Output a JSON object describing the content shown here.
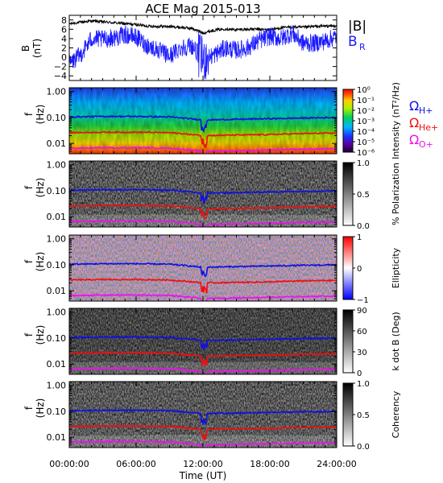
{
  "title": "ACE Mag 2015-013",
  "x_axis": {
    "label": "Time (UT)",
    "ticks": [
      "00:00:00",
      "06:00:00",
      "12:00:00",
      "18:00:00",
      "24:00:00"
    ]
  },
  "colors": {
    "B_total": "#000000",
    "B_R": "#1a1aff",
    "omega_H": "#1010e0",
    "omega_He": "#ee1010",
    "omega_O": "#ee10ee"
  },
  "legend_B": {
    "total": "|B|",
    "radial": "B",
    "radial_sub": "R"
  },
  "legend_gyro": [
    {
      "name": "Ω",
      "sub": "H+",
      "color": "#1010e0"
    },
    {
      "name": "Ω",
      "sub": "He+",
      "color": "#ee1010"
    },
    {
      "name": "Ω",
      "sub": "O+",
      "color": "#ee10ee"
    }
  ],
  "panel_B": {
    "ylabel_top": "B",
    "ylabel_bottom": "(nT)",
    "yticks": [
      "8",
      "6",
      "4",
      "2",
      "0",
      "−2",
      "−4"
    ]
  },
  "freq_panel": {
    "ylabel_top": "f",
    "ylabel_bottom": "(Hz)",
    "yticks": [
      "1.00",
      "0.10",
      "0.01"
    ]
  },
  "panels": [
    {
      "id": "intensity",
      "cb_label": "Intensity (nT²/Hz)",
      "cb_ticks": [
        "10⁰",
        "10⁻¹",
        "10⁻²",
        "10⁻³",
        "10⁻⁴",
        "10⁻⁵",
        "10⁻⁶"
      ]
    },
    {
      "id": "polarization",
      "cb_label": "% Polarization",
      "cb_ticks": [
        "1.0",
        "0.5",
        "0.0"
      ]
    },
    {
      "id": "ellipticity",
      "cb_label": "Ellipticity",
      "cb_ticks": [
        "1",
        "0",
        "−1"
      ]
    },
    {
      "id": "kdotb",
      "cb_label": "k dot B (Deg)",
      "cb_ticks": [
        "90",
        "60",
        "30",
        "0"
      ]
    },
    {
      "id": "coherence",
      "cb_label": "Coherency",
      "cb_ticks": [
        "1.0",
        "0.5",
        "0.0"
      ]
    }
  ],
  "chart_data": [
    {
      "type": "line",
      "title": "ACE Mag 2015-013",
      "xlabel": "Time (UT)",
      "ylabel": "B (nT)",
      "xlim": [
        0,
        24
      ],
      "ylim": [
        -5,
        9
      ],
      "x": [
        0,
        1,
        2,
        3,
        4,
        5,
        6,
        7,
        8,
        9,
        10,
        11,
        12,
        13,
        14,
        15,
        16,
        17,
        18,
        19,
        20,
        21,
        22,
        23,
        24
      ],
      "series": [
        {
          "name": "|B|",
          "values": [
            7.2,
            7.5,
            7.8,
            7.6,
            7.4,
            7.2,
            7.0,
            6.7,
            6.6,
            6.6,
            6.4,
            6.2,
            5.2,
            5.8,
            6.1,
            5.9,
            6.0,
            6.0,
            5.9,
            6.3,
            6.5,
            6.4,
            6.6,
            6.7,
            6.7
          ]
        },
        {
          "name": "B_R",
          "values": [
            -1.5,
            0.5,
            4.0,
            3.8,
            4.2,
            4.8,
            4.3,
            2.5,
            1.5,
            0.2,
            2.0,
            2.5,
            -0.5,
            0.5,
            2.0,
            1.5,
            2.0,
            3.5,
            4.5,
            4.0,
            5.2,
            3.0,
            3.0,
            3.5,
            4.5
          ]
        }
      ]
    },
    {
      "type": "heatmap",
      "name": "intensity",
      "ylabel": "f (Hz)",
      "yscale": "log",
      "ylim": [
        0.004,
        1.4
      ],
      "zlabel": "Intensity (nT²/Hz)",
      "zlim": [
        1e-06,
        1
      ],
      "x": [
        0,
        3,
        6,
        9,
        12,
        15,
        18,
        21,
        24
      ],
      "series": [
        {
          "name": "ΩH+",
          "values": [
            0.105,
            0.11,
            0.11,
            0.105,
            0.08,
            0.085,
            0.09,
            0.095,
            0.1
          ]
        },
        {
          "name": "ΩHe+",
          "values": [
            0.026,
            0.027,
            0.027,
            0.026,
            0.02,
            0.021,
            0.022,
            0.024,
            0.025
          ]
        },
        {
          "name": "ΩO+",
          "values": [
            0.0065,
            0.0068,
            0.0068,
            0.0066,
            0.005,
            0.0053,
            0.0056,
            0.006,
            0.0062
          ]
        }
      ]
    },
    {
      "type": "heatmap",
      "name": "polarization",
      "ylabel": "f (Hz)",
      "yscale": "log",
      "zlabel": "% Polarization",
      "zlim": [
        0,
        1
      ]
    },
    {
      "type": "heatmap",
      "name": "ellipticity",
      "ylabel": "f (Hz)",
      "yscale": "log",
      "zlabel": "Ellipticity",
      "zlim": [
        -1,
        1
      ]
    },
    {
      "type": "heatmap",
      "name": "kdotb",
      "ylabel": "f (Hz)",
      "yscale": "log",
      "zlabel": "k dot B (Deg)",
      "zlim": [
        0,
        90
      ]
    },
    {
      "type": "heatmap",
      "name": "coherence",
      "ylabel": "f (Hz)",
      "yscale": "log",
      "zlabel": "Coherency",
      "zlim": [
        0,
        1
      ]
    }
  ]
}
